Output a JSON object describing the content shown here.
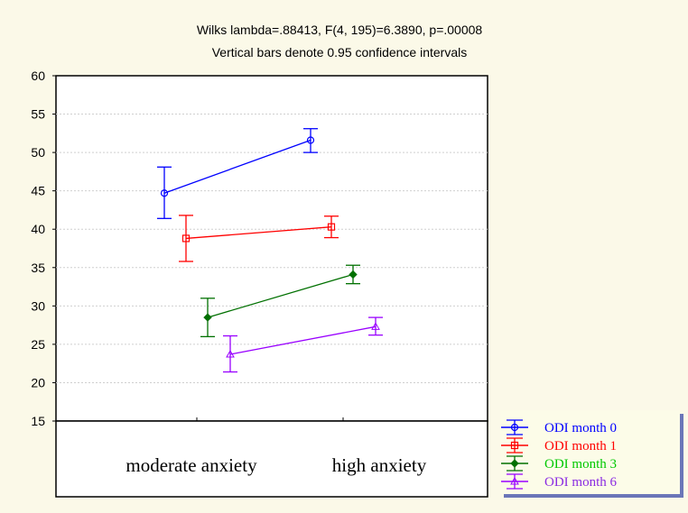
{
  "chart_data": {
    "type": "line",
    "title": "Wilks lambda=.88413, F(4, 195)=6.3890, p=.00008",
    "subtitle": "Vertical bars denote 0.95 confidence intervals",
    "categories": [
      "moderate anxiety",
      "high anxiety"
    ],
    "ylim": [
      15,
      60
    ],
    "yticks": [
      15,
      20,
      25,
      30,
      35,
      40,
      45,
      50,
      55,
      60
    ],
    "grid": true,
    "legend_position": "bottom-right",
    "series": [
      {
        "name": "ODI  month 0",
        "color": "#0000ff",
        "marker": "circle",
        "values": [
          44.7,
          51.6
        ],
        "ci_low": [
          41.4,
          50.0
        ],
        "ci_high": [
          48.1,
          53.1
        ]
      },
      {
        "name": "ODI  month 1",
        "color": "#ff0000",
        "marker": "square",
        "values": [
          38.8,
          40.3
        ],
        "ci_low": [
          35.8,
          38.9
        ],
        "ci_high": [
          41.8,
          41.7
        ]
      },
      {
        "name": "ODI  month 3",
        "color": "#007000",
        "legend_color": "#00c800",
        "marker": "diamond",
        "values": [
          28.5,
          34.1
        ],
        "ci_low": [
          26.0,
          32.9
        ],
        "ci_high": [
          31.0,
          35.3
        ]
      },
      {
        "name": "ODI  month 6",
        "color": "#9900ff",
        "legend_color": "#8a2be2",
        "marker": "triangle",
        "values": [
          23.7,
          27.3
        ],
        "ci_low": [
          21.4,
          26.2
        ],
        "ci_high": [
          26.1,
          28.5
        ]
      }
    ]
  }
}
